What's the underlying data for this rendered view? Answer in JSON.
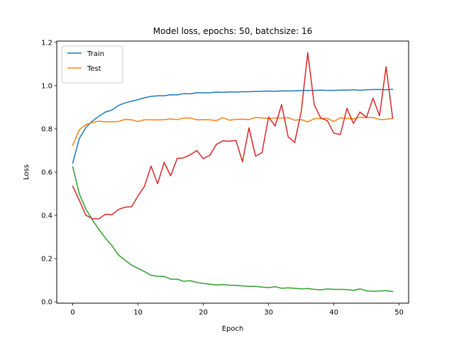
{
  "chart_data": {
    "type": "line",
    "title": "Model loss, epochs: 50, batchsize: 16",
    "xlabel": "Epoch",
    "ylabel": "Loss",
    "xlim": [
      -2.45,
      51.45
    ],
    "ylim": [
      -0.006,
      1.206
    ],
    "xticks": [
      0,
      10,
      20,
      30,
      40,
      50
    ],
    "yticks": [
      0.0,
      0.2,
      0.4,
      0.6,
      0.8,
      1.0,
      1.2
    ],
    "ytick_labels": [
      "0.0",
      "0.2",
      "0.4",
      "0.6",
      "0.8",
      "1.0",
      "1.2"
    ],
    "legend_position": "top-left",
    "x": [
      0,
      1,
      2,
      3,
      4,
      5,
      6,
      7,
      8,
      9,
      10,
      11,
      12,
      13,
      14,
      15,
      16,
      17,
      18,
      19,
      20,
      21,
      22,
      23,
      24,
      25,
      26,
      27,
      28,
      29,
      30,
      31,
      32,
      33,
      34,
      35,
      36,
      37,
      38,
      39,
      40,
      41,
      42,
      43,
      44,
      45,
      46,
      47,
      48,
      49
    ],
    "series": [
      {
        "name": "Train",
        "color": "#1f77b4",
        "in_legend": true,
        "values": [
          0.642,
          0.755,
          0.806,
          0.836,
          0.858,
          0.878,
          0.887,
          0.908,
          0.92,
          0.928,
          0.935,
          0.944,
          0.95,
          0.953,
          0.953,
          0.958,
          0.957,
          0.963,
          0.962,
          0.967,
          0.967,
          0.967,
          0.97,
          0.969,
          0.971,
          0.97,
          0.972,
          0.972,
          0.973,
          0.974,
          0.975,
          0.974,
          0.976,
          0.975,
          0.976,
          0.977,
          0.978,
          0.978,
          0.979,
          0.978,
          0.978,
          0.979,
          0.979,
          0.981,
          0.978,
          0.981,
          0.982,
          0.982,
          0.981,
          0.983
        ]
      },
      {
        "name": "Test",
        "color": "#ff7f0e",
        "in_legend": true,
        "values": [
          0.724,
          0.796,
          0.819,
          0.829,
          0.836,
          0.832,
          0.833,
          0.834,
          0.844,
          0.842,
          0.834,
          0.842,
          0.842,
          0.841,
          0.843,
          0.846,
          0.843,
          0.85,
          0.85,
          0.842,
          0.843,
          0.842,
          0.838,
          0.852,
          0.84,
          0.844,
          0.845,
          0.843,
          0.853,
          0.85,
          0.848,
          0.85,
          0.85,
          0.852,
          0.84,
          0.843,
          0.832,
          0.847,
          0.848,
          0.849,
          0.834,
          0.851,
          0.848,
          0.846,
          0.854,
          0.852,
          0.853,
          0.843,
          0.844,
          0.848
        ]
      },
      {
        "name": "",
        "color": "#2ca02c",
        "in_legend": false,
        "values": [
          0.625,
          0.5,
          0.43,
          0.38,
          0.335,
          0.295,
          0.26,
          0.217,
          0.193,
          0.17,
          0.155,
          0.14,
          0.123,
          0.118,
          0.118,
          0.105,
          0.105,
          0.095,
          0.098,
          0.09,
          0.085,
          0.082,
          0.078,
          0.08,
          0.077,
          0.076,
          0.074,
          0.072,
          0.072,
          0.068,
          0.066,
          0.07,
          0.063,
          0.065,
          0.063,
          0.06,
          0.062,
          0.058,
          0.056,
          0.06,
          0.058,
          0.058,
          0.057,
          0.053,
          0.06,
          0.051,
          0.049,
          0.05,
          0.052,
          0.048
        ]
      },
      {
        "name": "",
        "color": "#d62728",
        "in_legend": false,
        "values": [
          0.535,
          0.47,
          0.401,
          0.385,
          0.384,
          0.405,
          0.403,
          0.427,
          0.438,
          0.44,
          0.49,
          0.535,
          0.628,
          0.546,
          0.645,
          0.583,
          0.663,
          0.666,
          0.68,
          0.7,
          0.662,
          0.678,
          0.728,
          0.745,
          0.743,
          0.747,
          0.648,
          0.805,
          0.674,
          0.69,
          0.855,
          0.813,
          0.912,
          0.763,
          0.737,
          0.88,
          1.152,
          0.911,
          0.85,
          0.838,
          0.78,
          0.774,
          0.895,
          0.825,
          0.878,
          0.853,
          0.942,
          0.861,
          1.088,
          0.851
        ]
      }
    ]
  }
}
